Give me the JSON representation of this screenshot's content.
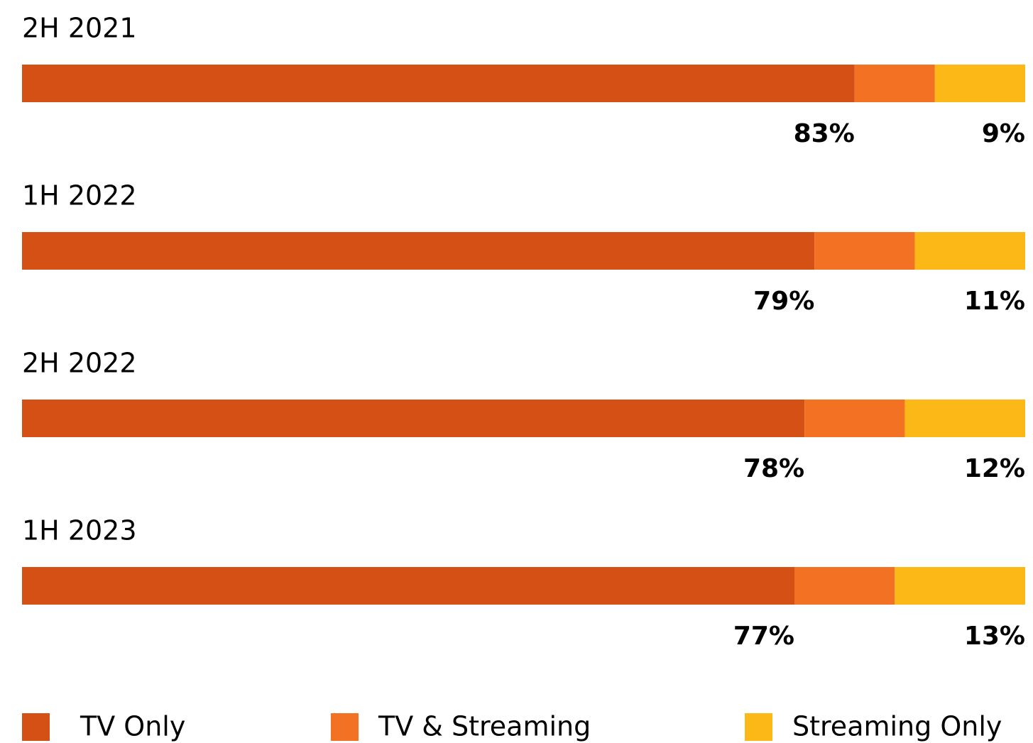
{
  "chart_data": {
    "type": "stacked-bar-horizontal",
    "categories": [
      "2H 2021",
      "1H 2022",
      "2H 2022",
      "1H 2023"
    ],
    "series": [
      {
        "name": "TV Only",
        "color": "#d55014",
        "values": [
          83,
          79,
          78,
          77
        ],
        "value_labels": [
          "83%",
          "79%",
          "78%",
          "77%"
        ]
      },
      {
        "name": "TV & Streaming",
        "color": "#f27122",
        "values": [
          8,
          10,
          10,
          10
        ]
      },
      {
        "name": "Streaming Only",
        "color": "#fbb817",
        "values": [
          9,
          11,
          12,
          13
        ],
        "value_labels": [
          "9%",
          "11%",
          "12%",
          "13%"
        ]
      }
    ],
    "xlim": [
      0,
      100
    ]
  }
}
